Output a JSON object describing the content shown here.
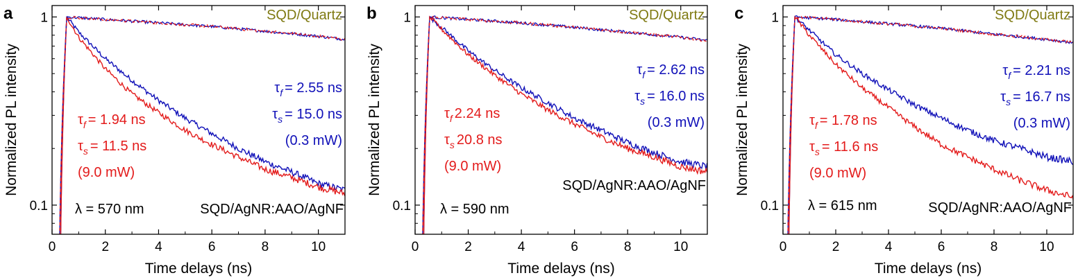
{
  "colors": {
    "blue": "#1010b8",
    "red": "#e31b1b",
    "quartz": "#7f7a12",
    "axis": "#000000"
  },
  "chart_data": [
    {
      "type": "line",
      "panel_label": "a",
      "xlabel": "Time delays (ns)",
      "ylabel": "Normalized PL intensity",
      "x_scale": "linear",
      "y_scale": "log",
      "xlim": [
        0,
        11
      ],
      "ylim": [
        0.07,
        1.15
      ],
      "x_ticks": [
        "0",
        "2",
        "4",
        "6",
        "8",
        "10"
      ],
      "y_ticks": [
        "1",
        "0.1"
      ],
      "quartz_label": "SQD/Quartz",
      "sample_label": "SQD/AgNR:AAO/AgNF",
      "wavelength_label": "λ = 570 nm",
      "peak_time": 0.55,
      "blue": {
        "tf_value": "= 2.55 ns",
        "ts_value": "= 15.0 ns",
        "power": "(0.3 mW)"
      },
      "red": {
        "tf_value": "= 1.94 ns",
        "ts_value": "= 11.5 ns",
        "power": "(9.0 mW)"
      },
      "series": [
        {
          "color": "blue",
          "x": [
            0.55,
            1,
            2,
            3,
            4,
            5,
            6,
            7,
            8,
            9,
            10,
            11
          ],
          "y": [
            1.0,
            0.83,
            0.6,
            0.46,
            0.36,
            0.29,
            0.24,
            0.2,
            0.17,
            0.15,
            0.13,
            0.12
          ]
        },
        {
          "color": "red",
          "x": [
            0.55,
            1,
            2,
            3,
            4,
            5,
            6,
            7,
            8,
            9,
            10,
            11
          ],
          "y": [
            1.0,
            0.78,
            0.53,
            0.39,
            0.31,
            0.25,
            0.21,
            0.18,
            0.155,
            0.14,
            0.125,
            0.115
          ]
        },
        {
          "color": "blue",
          "x": [
            0.55,
            2,
            4,
            6,
            8,
            10,
            11
          ],
          "y": [
            1.0,
            0.97,
            0.93,
            0.89,
            0.84,
            0.79,
            0.76
          ]
        },
        {
          "color": "red",
          "x": [
            0.55,
            2,
            4,
            6,
            8,
            10,
            11
          ],
          "y": [
            1.0,
            0.97,
            0.93,
            0.89,
            0.84,
            0.79,
            0.76
          ]
        }
      ]
    },
    {
      "type": "line",
      "panel_label": "b",
      "xlabel": "Time delays (ns)",
      "ylabel": "Normalized PL intensity",
      "x_scale": "linear",
      "y_scale": "log",
      "xlim": [
        0,
        11
      ],
      "ylim": [
        0.07,
        1.15
      ],
      "x_ticks": [
        "0",
        "2",
        "4",
        "6",
        "8",
        "10"
      ],
      "y_ticks": [
        "1",
        "0.1"
      ],
      "quartz_label": "SQD/Quartz",
      "sample_label": "SQD/AgNR:AAO/AgNF",
      "wavelength_label": "λ = 590 nm",
      "peak_time": 0.55,
      "blue": {
        "tf_value": "= 2.62 ns",
        "ts_value": "= 16.0 ns",
        "power": "(0.3 mW)"
      },
      "red": {
        "tf_value": "2.24 ns",
        "ts_value": "20.8 ns",
        "power": "(9.0 mW)"
      },
      "series": [
        {
          "color": "blue",
          "x": [
            0.55,
            1,
            2,
            3,
            4,
            5,
            6,
            7,
            8,
            9,
            10,
            11
          ],
          "y": [
            1.0,
            0.88,
            0.66,
            0.52,
            0.42,
            0.35,
            0.29,
            0.25,
            0.215,
            0.19,
            0.17,
            0.16
          ]
        },
        {
          "color": "red",
          "x": [
            0.55,
            1,
            2,
            3,
            4,
            5,
            6,
            7,
            8,
            9,
            10,
            11
          ],
          "y": [
            1.0,
            0.86,
            0.63,
            0.49,
            0.39,
            0.32,
            0.27,
            0.23,
            0.2,
            0.18,
            0.16,
            0.15
          ]
        },
        {
          "color": "blue",
          "x": [
            0.55,
            2,
            4,
            6,
            8,
            10,
            11
          ],
          "y": [
            1.0,
            0.97,
            0.93,
            0.88,
            0.83,
            0.78,
            0.75
          ]
        },
        {
          "color": "red",
          "x": [
            0.55,
            2,
            4,
            6,
            8,
            10,
            11
          ],
          "y": [
            1.0,
            0.97,
            0.93,
            0.88,
            0.83,
            0.78,
            0.75
          ]
        }
      ]
    },
    {
      "type": "line",
      "panel_label": "c",
      "xlabel": "Time delays (ns)",
      "ylabel": "Normalized PL intensity",
      "x_scale": "linear",
      "y_scale": "log",
      "xlim": [
        0,
        11
      ],
      "ylim": [
        0.07,
        1.15
      ],
      "x_ticks": [
        "0",
        "2",
        "4",
        "6",
        "8",
        "10"
      ],
      "y_ticks": [
        "1",
        "0.1"
      ],
      "quartz_label": "SQD/Quartz",
      "sample_label": "SQD/AgNR:AAO/AgNF",
      "wavelength_label": "λ = 615 nm",
      "peak_time": 0.45,
      "blue": {
        "tf_value": "= 2.21 ns",
        "ts_value": "= 16.7 ns",
        "power": "(0.3 mW)"
      },
      "red": {
        "tf_value": "= 1.78 ns",
        "ts_value": "= 11.6 ns",
        "power": "(9.0 mW)"
      },
      "series": [
        {
          "color": "blue",
          "x": [
            0.45,
            1,
            2,
            3,
            4,
            5,
            6,
            7,
            8,
            9,
            10,
            11
          ],
          "y": [
            1.0,
            0.85,
            0.63,
            0.5,
            0.41,
            0.34,
            0.29,
            0.25,
            0.22,
            0.2,
            0.18,
            0.17
          ]
        },
        {
          "color": "red",
          "x": [
            0.45,
            1,
            2,
            3,
            4,
            5,
            6,
            7,
            8,
            9,
            10,
            11
          ],
          "y": [
            1.0,
            0.8,
            0.56,
            0.42,
            0.33,
            0.26,
            0.21,
            0.18,
            0.155,
            0.135,
            0.12,
            0.11
          ]
        },
        {
          "color": "blue",
          "x": [
            0.45,
            2,
            4,
            6,
            8,
            10,
            11
          ],
          "y": [
            1.0,
            0.97,
            0.92,
            0.87,
            0.81,
            0.76,
            0.73
          ]
        },
        {
          "color": "red",
          "x": [
            0.45,
            2,
            4,
            6,
            8,
            10,
            11
          ],
          "y": [
            1.0,
            0.97,
            0.92,
            0.87,
            0.81,
            0.76,
            0.73
          ]
        }
      ]
    }
  ]
}
